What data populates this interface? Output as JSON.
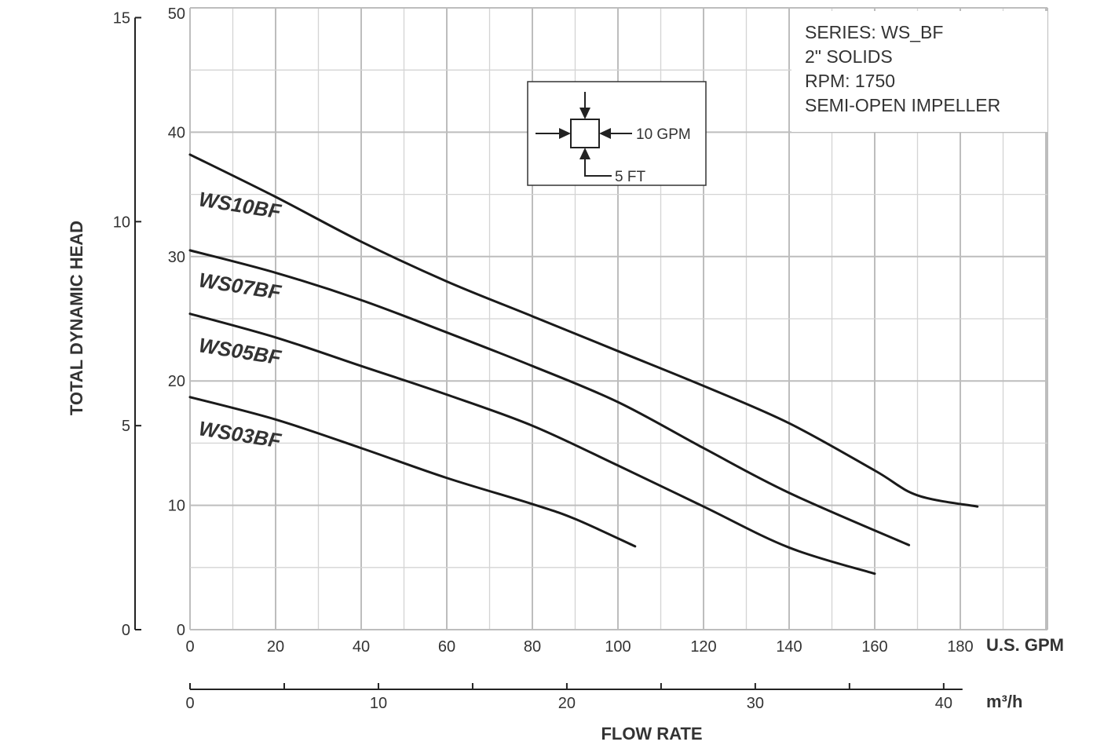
{
  "chart_data": {
    "type": "line",
    "xlabel": "FLOW RATE",
    "ylabel": "TOTAL DYNAMIC HEAD",
    "x_unit": "U.S. GPM",
    "x_secondary_unit": "m³/h",
    "xlim": [
      0,
      200
    ],
    "ylim": [
      0,
      50
    ],
    "y_secondary_lim": [
      0,
      15.24
    ],
    "x_ticks": [
      "0",
      "20",
      "40",
      "60",
      "80",
      "100",
      "120",
      "140",
      "160",
      "180"
    ],
    "x_secondary_ticks": [
      "0",
      "10",
      "20",
      "30",
      "40"
    ],
    "y_ticks": [
      "0",
      "10",
      "20",
      "30",
      "40",
      "50"
    ],
    "y_secondary_ticks": [
      "0",
      "5",
      "10",
      "15"
    ],
    "grid": true,
    "annotation": {
      "lines": [
        "SERIES: WS_BF",
        "2\" SOLIDS",
        "RPM: 1750",
        "SEMI-OPEN IMPELLER"
      ]
    },
    "grid_legend": {
      "horizontal": "10 GPM",
      "vertical": "5 FT"
    },
    "series": [
      {
        "name": "WS10BF",
        "x": [
          0,
          20,
          40,
          60,
          80,
          100,
          120,
          140,
          160,
          170,
          184
        ],
        "y": [
          38.2,
          34.8,
          31.2,
          28.0,
          25.2,
          22.4,
          19.6,
          16.6,
          12.8,
          10.8,
          9.9
        ]
      },
      {
        "name": "WS07BF",
        "x": [
          0,
          20,
          40,
          60,
          80,
          100,
          120,
          140,
          168
        ],
        "y": [
          30.5,
          28.7,
          26.5,
          23.9,
          21.2,
          18.3,
          14.6,
          11.0,
          6.8
        ]
      },
      {
        "name": "WS05BF",
        "x": [
          0,
          20,
          40,
          60,
          80,
          100,
          120,
          140,
          160
        ],
        "y": [
          25.4,
          23.5,
          21.2,
          18.9,
          16.4,
          13.2,
          9.9,
          6.6,
          4.5
        ]
      },
      {
        "name": "WS03BF",
        "x": [
          0,
          20,
          40,
          60,
          80,
          90,
          104
        ],
        "y": [
          18.7,
          16.9,
          14.6,
          12.2,
          10.1,
          8.9,
          6.7
        ]
      }
    ]
  }
}
